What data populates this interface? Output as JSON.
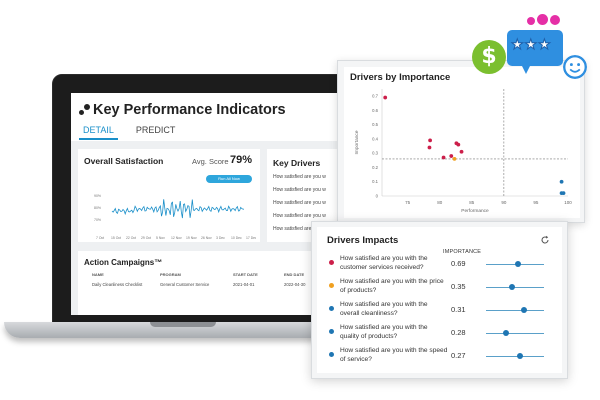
{
  "kpi": {
    "title": "Key Performance Indicators",
    "tabs": [
      "DETAIL",
      "PREDICT"
    ],
    "active_tab": "DETAIL"
  },
  "overall": {
    "title": "Overall Satisfaction",
    "avg_label": "Avg. Score",
    "avg_value": "79%",
    "button": "Run All Now",
    "x_ticks": [
      "7 Oct",
      "15 Oct",
      "22 Oct",
      "29 Oct",
      "5 Nov",
      "12 Nov",
      "19 Nov",
      "26 Nov",
      "3 Dec",
      "10 Dec",
      "17 Dec"
    ],
    "y_ticks": [
      "90%",
      "80%",
      "70%"
    ]
  },
  "key_drivers": {
    "title": "Key Drivers",
    "items": [
      "How satisfied are you w",
      "How satisfied are you w",
      "How satisfied are you w",
      "How satisfied are you w",
      "How satisfied are you w"
    ]
  },
  "campaigns": {
    "title": "Action Campaigns™",
    "columns": [
      "NAME",
      "PROGRAM",
      "START DATE",
      "END DATE"
    ],
    "rows": [
      [
        "Daily Cleanliness Checklist",
        "General Customer Service",
        "2021-04-01",
        "2022-04-30"
      ]
    ]
  },
  "importance": {
    "title": "Drivers by Importance",
    "xlabel": "Performance",
    "ylabel": "Importance",
    "x_ticks": [
      "75",
      "80",
      "85",
      "90",
      "95",
      "100"
    ],
    "y_ticks": [
      "0.7",
      "0.6",
      "0.5",
      "0.4",
      "0.3",
      "0.2",
      "0.1",
      "0"
    ]
  },
  "chart_data": {
    "type": "scatter",
    "title": "Drivers by Importance",
    "xlabel": "Performance",
    "ylabel": "Importance",
    "xlim": [
      71,
      100
    ],
    "ylim": [
      0,
      0.75
    ],
    "points": [
      {
        "x": 71.5,
        "y": 0.69,
        "color": "#cc1f4a"
      },
      {
        "x": 82.6,
        "y": 0.37,
        "color": "#cc1f4a"
      },
      {
        "x": 82.9,
        "y": 0.36,
        "color": "#cc1f4a"
      },
      {
        "x": 83.4,
        "y": 0.31,
        "color": "#cc1f4a"
      },
      {
        "x": 78.5,
        "y": 0.39,
        "color": "#cc1f4a"
      },
      {
        "x": 78.4,
        "y": 0.34,
        "color": "#cc1f4a"
      },
      {
        "x": 80.6,
        "y": 0.27,
        "color": "#cc1f4a"
      },
      {
        "x": 81.8,
        "y": 0.28,
        "color": "#cc1f4a"
      },
      {
        "x": 82.3,
        "y": 0.26,
        "color": "#f0a020"
      },
      {
        "x": 99.0,
        "y": 0.1,
        "color": "#1f76b3"
      },
      {
        "x": 99.0,
        "y": 0.02,
        "color": "#1f76b3"
      },
      {
        "x": 99.3,
        "y": 0.02,
        "color": "#1f76b3"
      }
    ],
    "ref_x": 90,
    "ref_y": 0.26,
    "grid": false
  },
  "impacts": {
    "title": "Drivers Impacts",
    "column_header": "IMPORTANCE",
    "rows": [
      {
        "question": "How satisfied are you with the customer services received?",
        "value": "0.69",
        "color": "#cc1f4a",
        "slider": 0.55
      },
      {
        "question": "How satisfied are you with the price of products?",
        "value": "0.35",
        "color": "#f0a020",
        "slider": 0.45
      },
      {
        "question": "How satisfied are you with the overall cleanliness?",
        "value": "0.31",
        "color": "#1f76b3",
        "slider": 0.65
      },
      {
        "question": "How satisfied are you with the quality of products?",
        "value": "0.28",
        "color": "#1f76b3",
        "slider": 0.35
      },
      {
        "question": "How satisfied are you with the speed of service?",
        "value": "0.27",
        "color": "#1f76b3",
        "slider": 0.58
      }
    ]
  },
  "decor": {
    "dollar": "$",
    "stars": "★★★"
  }
}
